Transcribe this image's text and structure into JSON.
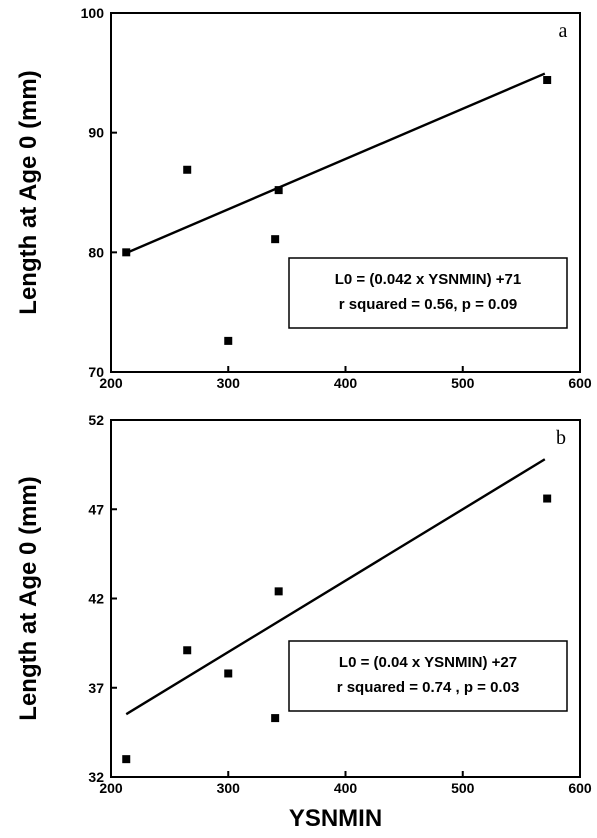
{
  "chart_data": [
    {
      "type": "scatter",
      "panel": "a",
      "ylabel": "Length at Age 0 (mm)",
      "xlabel": "",
      "xlim": [
        200,
        600
      ],
      "ylim": [
        70,
        100
      ],
      "xticks": [
        "200",
        "300",
        "400",
        "500",
        "600"
      ],
      "yticks": [
        "70",
        "80",
        "90",
        "100"
      ],
      "points": [
        {
          "x": 213,
          "y": 80.0
        },
        {
          "x": 265,
          "y": 86.9
        },
        {
          "x": 300,
          "y": 72.6
        },
        {
          "x": 340,
          "y": 81.1
        },
        {
          "x": 343,
          "y": 85.2
        },
        {
          "x": 572,
          "y": 94.4
        }
      ],
      "fit": {
        "slope": 0.042,
        "intercept": 71,
        "x_range": [
          213,
          570
        ]
      },
      "annotation": [
        "L0 = (0.042 x YSNMIN) +71",
        "r squared = 0.56,  p = 0.09"
      ]
    },
    {
      "type": "scatter",
      "panel": "b",
      "ylabel": "Length at Age 0 (mm)",
      "xlabel": "YSNMIN",
      "xlim": [
        200,
        600
      ],
      "ylim": [
        32,
        52
      ],
      "xticks": [
        "200",
        "300",
        "400",
        "500",
        "600"
      ],
      "yticks": [
        "32",
        "37",
        "42",
        "47",
        "52"
      ],
      "points": [
        {
          "x": 213,
          "y": 33.0
        },
        {
          "x": 265,
          "y": 39.1
        },
        {
          "x": 300,
          "y": 37.8
        },
        {
          "x": 340,
          "y": 35.3
        },
        {
          "x": 343,
          "y": 42.4
        },
        {
          "x": 572,
          "y": 47.6
        }
      ],
      "fit": {
        "slope": 0.04,
        "intercept": 27,
        "x_range": [
          213,
          570
        ]
      },
      "annotation": [
        "L0 = (0.04 x YSNMIN) +27",
        "r squared = 0.74 ,  p = 0.03"
      ]
    }
  ]
}
